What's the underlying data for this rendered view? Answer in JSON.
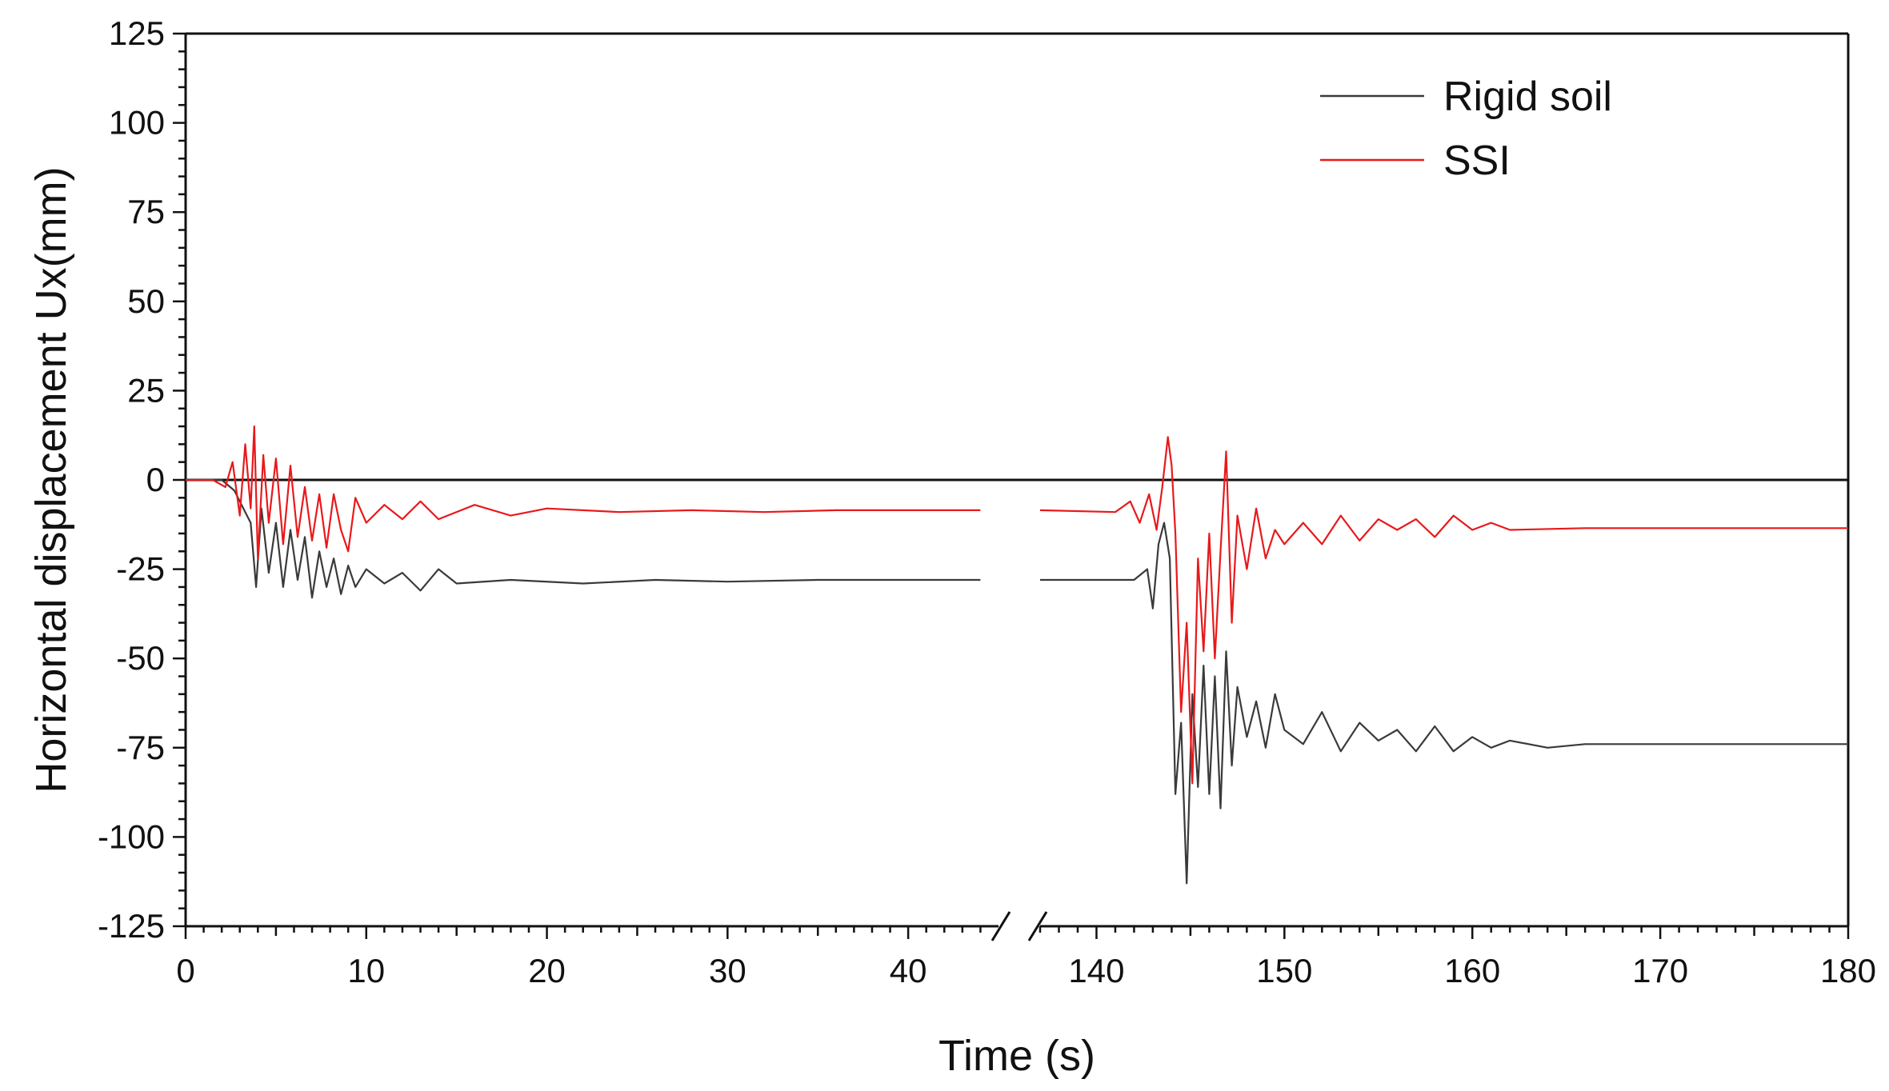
{
  "chart_data": {
    "type": "line",
    "xlabel": "Time (s)",
    "ylabel": "Horizontal displacement Ux(mm)",
    "axis_break": {
      "from": 45,
      "to": 137
    },
    "xlim": [
      0,
      180
    ],
    "ylim": [
      -125,
      125
    ],
    "x_ticks": [
      "0",
      "10",
      "20",
      "30",
      "40",
      "140",
      "150",
      "160",
      "170",
      "180"
    ],
    "y_ticks": [
      "125",
      "100",
      "75",
      "50",
      "25",
      "0",
      "-25",
      "-50",
      "-75",
      "-100",
      "-125"
    ],
    "legend_position": "top-right",
    "series": [
      {
        "name": "Rigid soil",
        "color": "#3a3a3a",
        "points": [
          [
            0,
            0
          ],
          [
            2,
            0
          ],
          [
            2.7,
            -3
          ],
          [
            3.2,
            -8
          ],
          [
            3.6,
            -12
          ],
          [
            3.9,
            -30
          ],
          [
            4.2,
            -8
          ],
          [
            4.6,
            -26
          ],
          [
            5,
            -12
          ],
          [
            5.4,
            -30
          ],
          [
            5.8,
            -14
          ],
          [
            6.2,
            -28
          ],
          [
            6.6,
            -16
          ],
          [
            7,
            -33
          ],
          [
            7.4,
            -20
          ],
          [
            7.8,
            -30
          ],
          [
            8.2,
            -22
          ],
          [
            8.6,
            -32
          ],
          [
            9,
            -24
          ],
          [
            9.4,
            -30
          ],
          [
            10,
            -25
          ],
          [
            11,
            -29
          ],
          [
            12,
            -26
          ],
          [
            13,
            -31
          ],
          [
            14,
            -25
          ],
          [
            15,
            -29
          ],
          [
            18,
            -28
          ],
          [
            22,
            -29
          ],
          [
            26,
            -28
          ],
          [
            30,
            -28.5
          ],
          [
            35,
            -28
          ],
          [
            40,
            -28
          ],
          [
            44,
            -28
          ],
          [
            137,
            -28
          ],
          [
            142,
            -28
          ],
          [
            142.7,
            -25
          ],
          [
            143,
            -36
          ],
          [
            143.3,
            -18
          ],
          [
            143.6,
            -12
          ],
          [
            143.9,
            -22
          ],
          [
            144.2,
            -88
          ],
          [
            144.5,
            -68
          ],
          [
            144.8,
            -113
          ],
          [
            145.1,
            -60
          ],
          [
            145.4,
            -86
          ],
          [
            145.7,
            -52
          ],
          [
            146,
            -88
          ],
          [
            146.3,
            -55
          ],
          [
            146.6,
            -92
          ],
          [
            146.9,
            -48
          ],
          [
            147.2,
            -80
          ],
          [
            147.5,
            -58
          ],
          [
            148,
            -72
          ],
          [
            148.5,
            -62
          ],
          [
            149,
            -75
          ],
          [
            149.5,
            -60
          ],
          [
            150,
            -70
          ],
          [
            151,
            -74
          ],
          [
            152,
            -65
          ],
          [
            153,
            -76
          ],
          [
            154,
            -68
          ],
          [
            155,
            -73
          ],
          [
            156,
            -70
          ],
          [
            157,
            -76
          ],
          [
            158,
            -69
          ],
          [
            159,
            -76
          ],
          [
            160,
            -72
          ],
          [
            161,
            -75
          ],
          [
            162,
            -73
          ],
          [
            164,
            -75
          ],
          [
            166,
            -74
          ],
          [
            170,
            -74
          ],
          [
            180,
            -74
          ]
        ]
      },
      {
        "name": "SSI",
        "color": "#e8191b",
        "points": [
          [
            0,
            0
          ],
          [
            1.5,
            0
          ],
          [
            2.2,
            -2
          ],
          [
            2.6,
            5
          ],
          [
            3,
            -10
          ],
          [
            3.3,
            10
          ],
          [
            3.6,
            -8
          ],
          [
            3.8,
            15
          ],
          [
            4,
            -22
          ],
          [
            4.3,
            7
          ],
          [
            4.6,
            -12
          ],
          [
            5,
            6
          ],
          [
            5.4,
            -18
          ],
          [
            5.8,
            4
          ],
          [
            6.2,
            -16
          ],
          [
            6.6,
            -2
          ],
          [
            7,
            -17
          ],
          [
            7.4,
            -4
          ],
          [
            7.8,
            -19
          ],
          [
            8.2,
            -4
          ],
          [
            8.6,
            -14
          ],
          [
            9,
            -20
          ],
          [
            9.4,
            -5
          ],
          [
            10,
            -12
          ],
          [
            11,
            -7
          ],
          [
            12,
            -11
          ],
          [
            13,
            -6
          ],
          [
            14,
            -11
          ],
          [
            16,
            -7
          ],
          [
            18,
            -10
          ],
          [
            20,
            -8
          ],
          [
            24,
            -9
          ],
          [
            28,
            -8.5
          ],
          [
            32,
            -9
          ],
          [
            36,
            -8.5
          ],
          [
            40,
            -8.5
          ],
          [
            44,
            -8.5
          ],
          [
            137,
            -8.5
          ],
          [
            141,
            -9
          ],
          [
            141.8,
            -6
          ],
          [
            142.3,
            -12
          ],
          [
            142.8,
            -4
          ],
          [
            143.2,
            -14
          ],
          [
            143.5,
            -2
          ],
          [
            143.8,
            12
          ],
          [
            144,
            4
          ],
          [
            144.2,
            -15
          ],
          [
            144.5,
            -65
          ],
          [
            144.8,
            -40
          ],
          [
            145.1,
            -85
          ],
          [
            145.4,
            -22
          ],
          [
            145.7,
            -48
          ],
          [
            146,
            -15
          ],
          [
            146.3,
            -50
          ],
          [
            146.6,
            -20
          ],
          [
            146.9,
            8
          ],
          [
            147.2,
            -40
          ],
          [
            147.5,
            -10
          ],
          [
            148,
            -25
          ],
          [
            148.5,
            -8
          ],
          [
            149,
            -22
          ],
          [
            149.5,
            -14
          ],
          [
            150,
            -18
          ],
          [
            151,
            -12
          ],
          [
            152,
            -18
          ],
          [
            153,
            -10
          ],
          [
            154,
            -17
          ],
          [
            155,
            -11
          ],
          [
            156,
            -14
          ],
          [
            157,
            -11
          ],
          [
            158,
            -16
          ],
          [
            159,
            -10
          ],
          [
            160,
            -14
          ],
          [
            161,
            -12
          ],
          [
            162,
            -14
          ],
          [
            166,
            -13.5
          ],
          [
            170,
            -13.5
          ],
          [
            180,
            -13.5
          ]
        ]
      }
    ]
  }
}
